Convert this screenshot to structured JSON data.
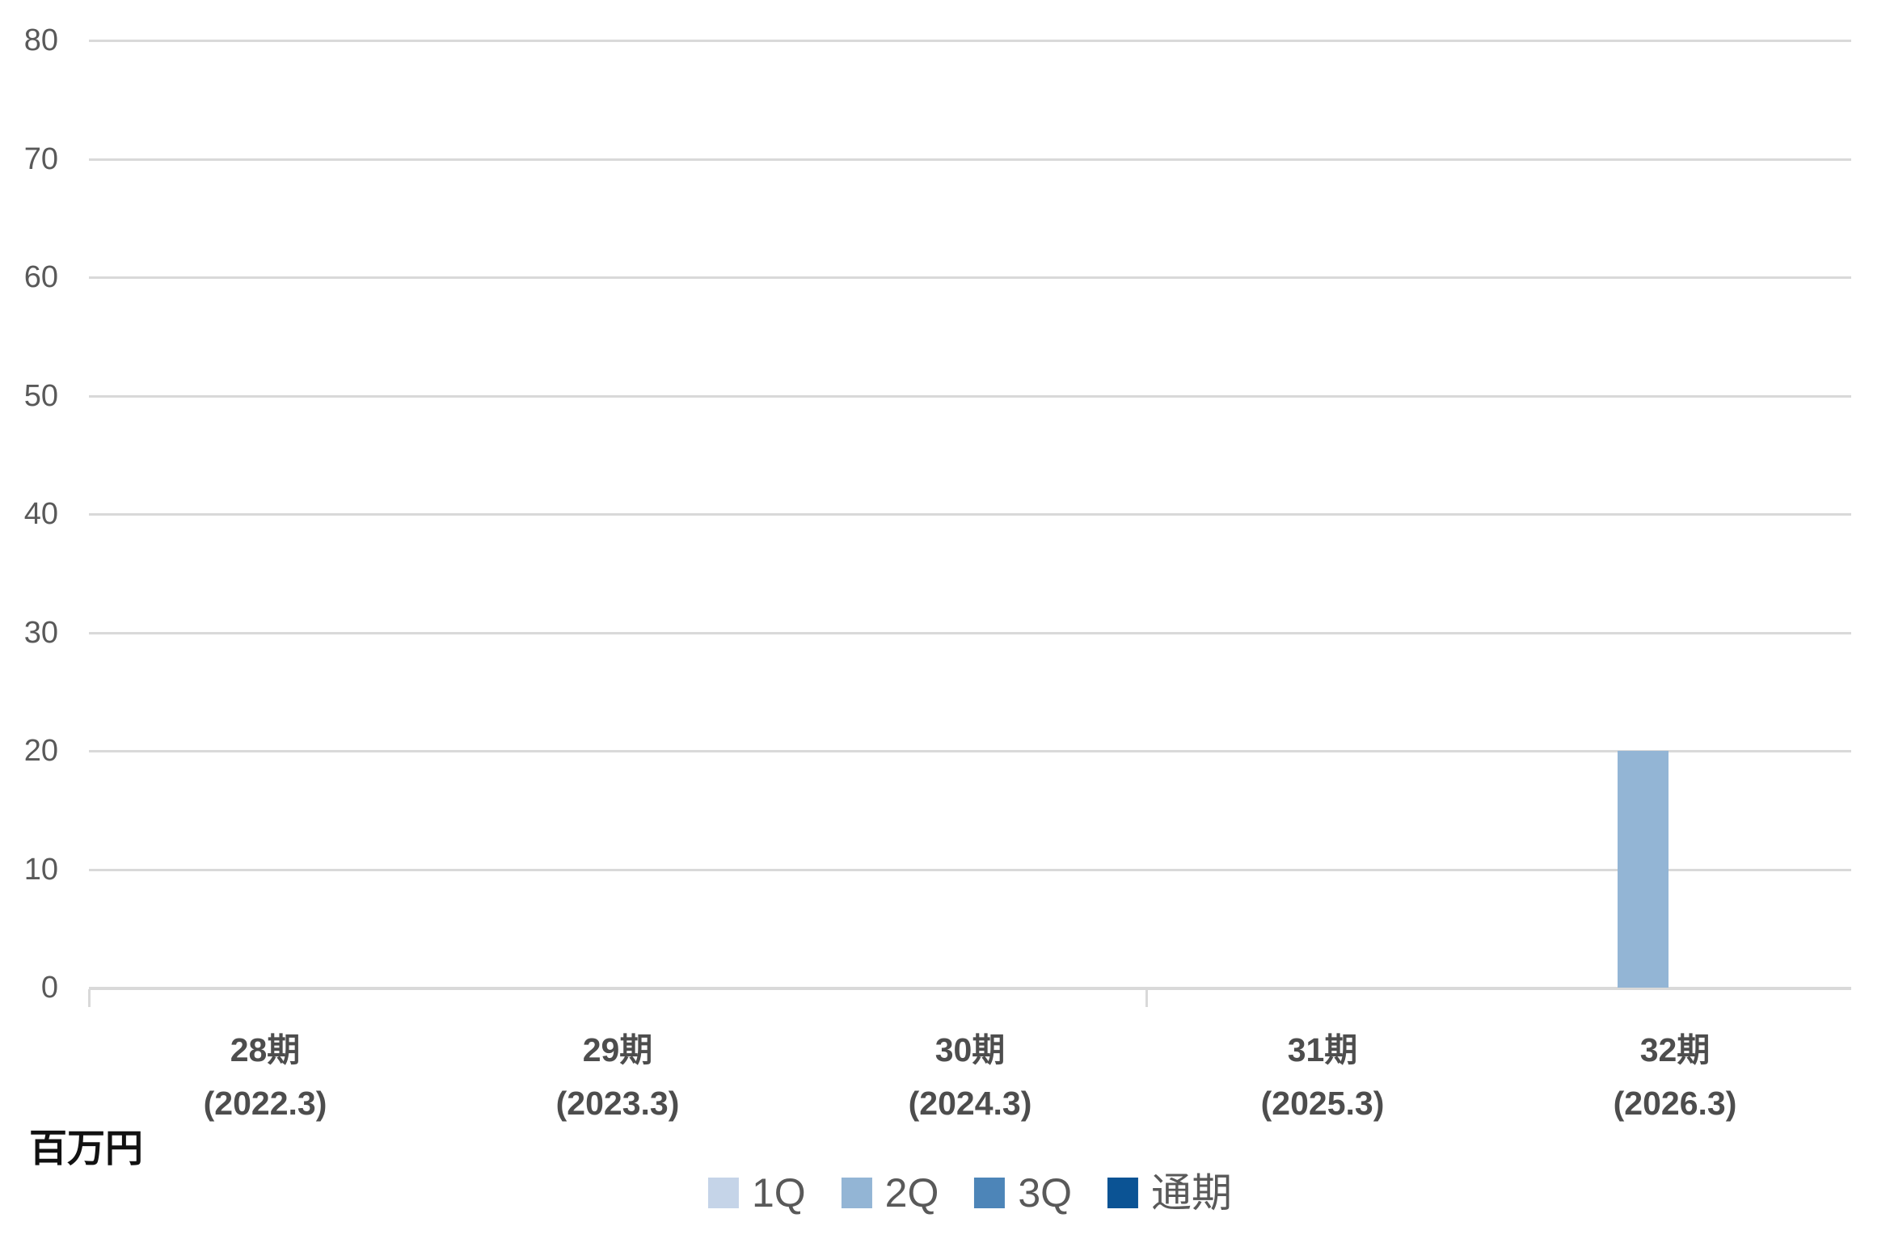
{
  "chart_data": {
    "type": "bar",
    "title": "",
    "unit_label": "百万円",
    "xlabel": "",
    "ylabel": "百万円",
    "ylim": [
      0,
      80
    ],
    "ytick_step": 10,
    "grid": true,
    "legend_position": "bottom",
    "categories": [
      "28期",
      "29期",
      "30期",
      "31期",
      "32期"
    ],
    "category_sublabels": [
      "(2022.3)",
      "(2023.3)",
      "(2024.3)",
      "(2025.3)",
      "(2026.3)"
    ],
    "series": [
      {
        "name": "1Q",
        "color": "#c5d4e8",
        "values": [
          null,
          null,
          null,
          null,
          null
        ]
      },
      {
        "name": "2Q",
        "color": "#93b5d5",
        "values": [
          null,
          null,
          null,
          null,
          20
        ]
      },
      {
        "name": "3Q",
        "color": "#4d85b8",
        "values": [
          null,
          null,
          null,
          null,
          null
        ]
      },
      {
        "name": "通期",
        "color": "#0b5394",
        "values": [
          null,
          null,
          null,
          null,
          null
        ]
      }
    ],
    "axis_boundary_ticks": [
      0,
      3
    ],
    "colors": {
      "gridline": "#d9d9d9",
      "tick_label": "#595959",
      "category_label": "#4d4d4d",
      "legend_text": "#595959",
      "unit_label_text": "#111111"
    }
  }
}
